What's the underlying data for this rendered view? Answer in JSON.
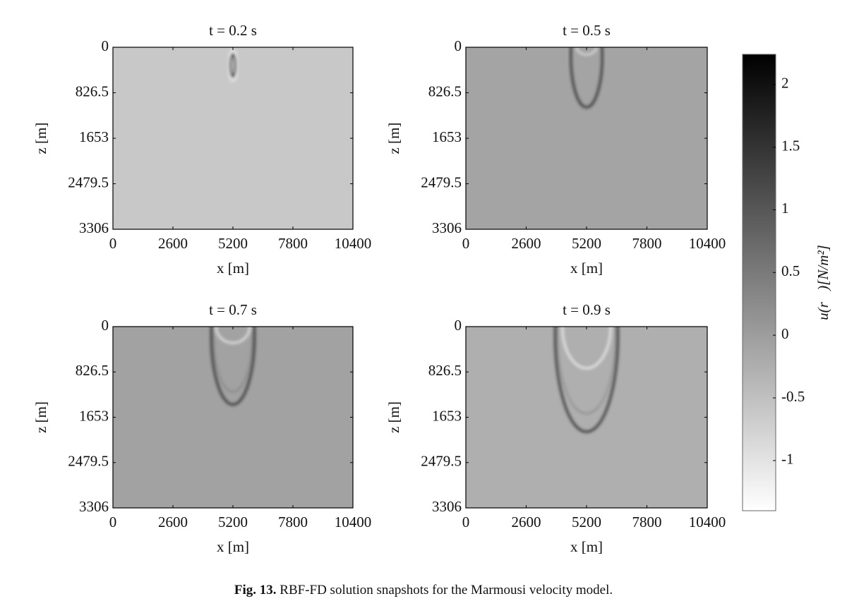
{
  "chart_data": [
    {
      "type": "heatmap",
      "title": "t = 0.2 s",
      "xlabel": "x [m]",
      "ylabel": "z [m]",
      "xlim": [
        0,
        10400
      ],
      "xticks": [
        0,
        2600,
        5200,
        7800,
        10400
      ],
      "ylim": [
        3306,
        0
      ],
      "yticks": [
        0,
        826.5,
        1653,
        2479.5,
        3306
      ],
      "background": "#c8c8c8"
    },
    {
      "type": "heatmap",
      "title": "t = 0.5 s",
      "xlabel": "x [m]",
      "ylabel": "z [m]",
      "xlim": [
        0,
        10400
      ],
      "xticks": [
        0,
        2600,
        5200,
        7800,
        10400
      ],
      "ylim": [
        3306,
        0
      ],
      "yticks": [
        0,
        826.5,
        1653,
        2479.5,
        3306
      ],
      "background": "#a4a4a4"
    },
    {
      "type": "heatmap",
      "title": "t = 0.7 s",
      "xlabel": "x [m]",
      "ylabel": "z [m]",
      "xlim": [
        0,
        10400
      ],
      "xticks": [
        0,
        2600,
        5200,
        7800,
        10400
      ],
      "ylim": [
        3306,
        0
      ],
      "yticks": [
        0,
        826.5,
        1653,
        2479.5,
        3306
      ],
      "background": "#a2a2a2"
    },
    {
      "type": "heatmap",
      "title": "t = 0.9 s",
      "xlabel": "x [m]",
      "ylabel": "z [m]",
      "xlim": [
        0,
        10400
      ],
      "xticks": [
        0,
        2600,
        5200,
        7800,
        10400
      ],
      "ylim": [
        3306,
        0
      ],
      "yticks": [
        0,
        826.5,
        1653,
        2479.5,
        3306
      ],
      "background": "#afafaf"
    },
    {
      "type": "colorbar",
      "label": "u(r⃗)[N/m²]",
      "ylim": [
        -1.4,
        2.24
      ],
      "yticks": [
        -1,
        -0.5,
        0,
        0.5,
        1,
        1.5,
        2
      ],
      "colors": [
        "#ffffff",
        "#000000"
      ]
    }
  ],
  "caption": {
    "label": "Fig. 13.",
    "text": "RBF-FD solution snapshots for the Marmousi velocity model."
  }
}
